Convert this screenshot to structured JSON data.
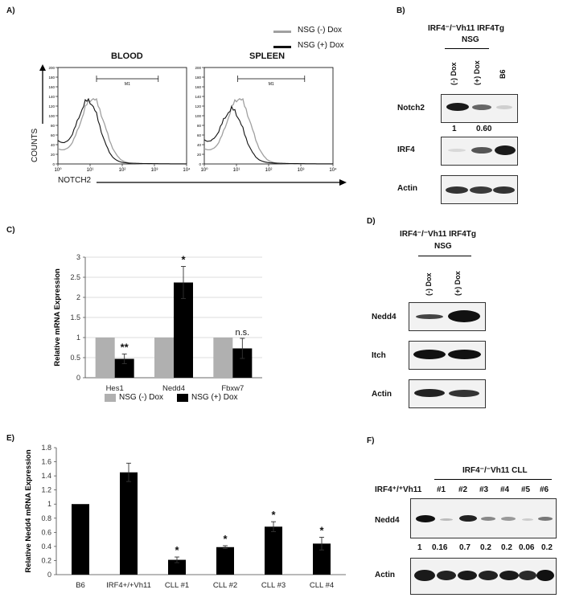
{
  "panel_labels": {
    "A": "A)",
    "B": "B)",
    "C": "C)",
    "D": "D)",
    "E": "E)",
    "F": "F)"
  },
  "panelA": {
    "legend": [
      "NSG (-) Dox",
      "NSG (+) Dox"
    ],
    "titles": [
      "BLOOD",
      "SPLEEN"
    ],
    "ylabel": "COUNTS",
    "xlabel": "NOTCH2",
    "gate_label": "M1",
    "x_ticks": [
      "10⁰",
      "10¹",
      "10²",
      "10³",
      "10⁴"
    ],
    "y_ticks": [
      "0",
      "20",
      "40",
      "60",
      "80",
      "100",
      "120",
      "140",
      "160",
      "180",
      "200"
    ],
    "colors": {
      "minus": "#a0a0a0",
      "plus": "#111111"
    }
  },
  "panelB": {
    "header1": "IRF4⁻/⁻Vh11 IRF4Tg",
    "header2": "NSG",
    "lanes": [
      "(-) Dox",
      "(+) Dox",
      "B6"
    ],
    "rows": [
      "Notch2",
      "IRF4",
      "Actin"
    ],
    "quant": [
      "1",
      "0.60"
    ]
  },
  "chart_data": [
    {
      "type": "bar",
      "panel": "C",
      "categories": [
        "Hes1",
        "Nedd4",
        "Fbxw7"
      ],
      "series": [
        {
          "name": "NSG (-) Dox",
          "values": [
            1,
            1,
            1
          ],
          "errors": [
            0,
            0,
            0
          ],
          "color": "#b0b0b0"
        },
        {
          "name": "NSG (+) Dox",
          "values": [
            0.47,
            2.37,
            0.73
          ],
          "errors": [
            0.12,
            0.4,
            0.25
          ],
          "color": "#000000"
        }
      ],
      "annotations": [
        "**",
        "*",
        "n.s."
      ],
      "ylabel": "Relative mRNA Expression",
      "xlabel": "",
      "ylim": [
        0,
        3
      ],
      "yticks": [
        "0",
        "0.5",
        "1",
        "1.5",
        "2",
        "2.5",
        "3"
      ],
      "grid": true,
      "legend": "bottom"
    },
    {
      "type": "bar",
      "panel": "E",
      "categories": [
        "B6",
        "IRF4+/+Vh11",
        "CLL #1",
        "CLL #2",
        "CLL #3",
        "CLL #4"
      ],
      "series": [
        {
          "name": "Relative Nedd4 mRNA Expression",
          "values": [
            1.0,
            1.45,
            0.21,
            0.39,
            0.68,
            0.44
          ],
          "errors": [
            0,
            0.13,
            0.04,
            0.02,
            0.07,
            0.09
          ],
          "color": "#000000"
        }
      ],
      "annotations": [
        "",
        "",
        "*",
        "*",
        "*",
        "*"
      ],
      "ylabel": "Relative Nedd4 mRNA Expression",
      "xlabel": "",
      "ylim": [
        0,
        1.8
      ],
      "yticks": [
        "0",
        "0.2",
        "0.4",
        "0.6",
        "0.8",
        "1",
        "1.2",
        "1.4",
        "1.6",
        "1.8"
      ],
      "grid": false,
      "legend": "none"
    }
  ],
  "panelC_legend": [
    "NSG (-) Dox",
    "NSG (+) Dox"
  ],
  "panelD": {
    "header1": "IRF4⁻/⁻Vh11 IRF4Tg",
    "header2": "NSG",
    "lanes": [
      "(-) Dox",
      "(+) Dox"
    ],
    "rows": [
      "Nedd4",
      "Itch",
      "Actin"
    ]
  },
  "panelF": {
    "header": "IRF4⁻/⁻Vh11 CLL",
    "lane_ref": "IRF4⁺/⁺Vh11",
    "lanes": [
      "#1",
      "#2",
      "#3",
      "#4",
      "#5",
      "#6"
    ],
    "rows": [
      "Nedd4",
      "Actin"
    ],
    "quant": [
      "1",
      "0.16",
      "0.7",
      "0.2",
      "0.2",
      "0.06",
      "0.2"
    ]
  }
}
